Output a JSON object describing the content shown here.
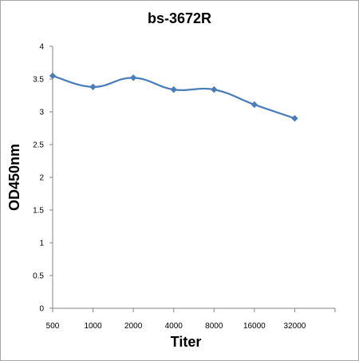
{
  "chart_data": {
    "type": "line",
    "title": "bs-3672R",
    "xlabel": "Titer",
    "ylabel": "OD450nm",
    "categories": [
      "500",
      "1000",
      "2000",
      "4000",
      "8000",
      "16000",
      "32000"
    ],
    "series": [
      {
        "values": [
          3.55,
          3.38,
          3.52,
          3.34,
          3.34,
          3.11,
          2.9
        ],
        "color": "#4a7ebb",
        "marker": "diamond",
        "smooth": true
      }
    ],
    "yticks": [
      "0",
      "0.5",
      "1",
      "1.5",
      "2",
      "2.5",
      "3",
      "3.5",
      "4"
    ],
    "ylim": [
      0,
      4
    ],
    "grid": false,
    "legend": "none"
  }
}
